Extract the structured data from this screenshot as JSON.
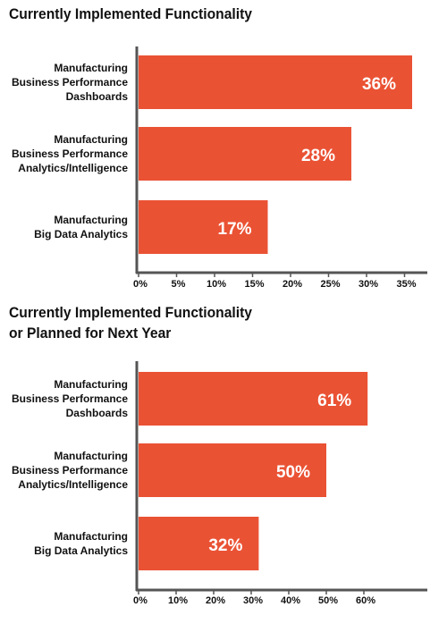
{
  "chart_data": [
    {
      "type": "bar",
      "orientation": "horizontal",
      "title": "Currently Implemented Functionality",
      "categories": [
        "Manufacturing\nBusiness Performance\nDashboards",
        "Manufacturing\nBusiness Performance\nAnalytics/Intelligence",
        "Manufacturing\nBig Data Analytics"
      ],
      "values": [
        36,
        28,
        17
      ],
      "value_labels": [
        "36%",
        "28%",
        "17%"
      ],
      "xlim": [
        0,
        37
      ],
      "xticks": [
        0,
        5,
        10,
        15,
        20,
        25,
        30,
        35
      ],
      "xtick_labels": [
        "0%",
        "5%",
        "10%",
        "15%",
        "20%",
        "25%",
        "30%",
        "35%"
      ],
      "grid": false,
      "legend": "none"
    },
    {
      "type": "bar",
      "orientation": "horizontal",
      "title": "Currently Implemented Functionality\nor Planned for Next Year",
      "categories": [
        "Manufacturing\nBusiness Performance\nDashboards",
        "Manufacturing\nBusiness Performance\nAnalytics/Intelligence",
        "Manufacturing\nBig Data Analytics"
      ],
      "values": [
        61,
        50,
        32
      ],
      "value_labels": [
        "61%",
        "50%",
        "32%"
      ],
      "xlim": [
        0,
        64
      ],
      "xticks": [
        0,
        10,
        20,
        30,
        40,
        50,
        60
      ],
      "xtick_labels": [
        "0%",
        "10%",
        "20%",
        "30%",
        "40%",
        "50%",
        "60%"
      ],
      "grid": false,
      "legend": "none"
    }
  ],
  "colors": {
    "bar": "#ea5234",
    "axis": "#555555",
    "text": "#111111",
    "value_label": "#ffffff"
  }
}
